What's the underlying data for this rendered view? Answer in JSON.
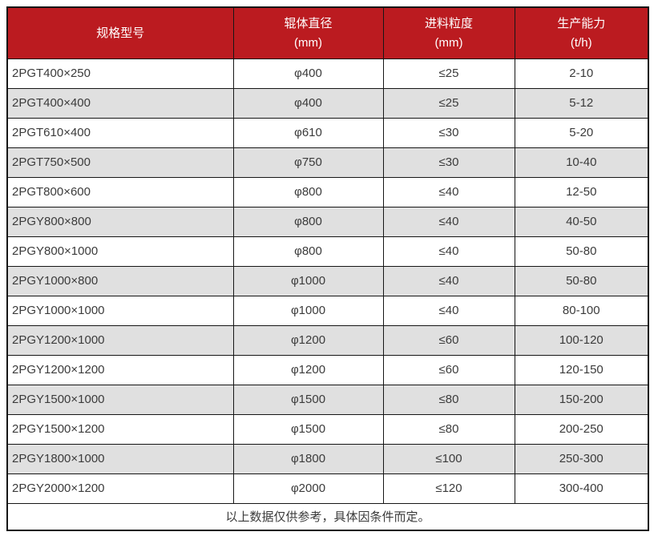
{
  "table": {
    "columns": [
      {
        "label": "规格型号",
        "unit": ""
      },
      {
        "label": "辊体直径",
        "unit": "(mm)"
      },
      {
        "label": "进料粒度",
        "unit": "(mm)"
      },
      {
        "label": "生产能力",
        "unit": "(t/h)"
      }
    ],
    "rows": [
      [
        "2PGT400×250",
        "φ400",
        "≤25",
        "2-10"
      ],
      [
        "2PGT400×400",
        "φ400",
        "≤25",
        "5-12"
      ],
      [
        "2PGT610×400",
        "φ610",
        "≤30",
        "5-20"
      ],
      [
        "2PGT750×500",
        "φ750",
        "≤30",
        "10-40"
      ],
      [
        "2PGT800×600",
        "φ800",
        "≤40",
        "12-50"
      ],
      [
        "2PGY800×800",
        "φ800",
        "≤40",
        "40-50"
      ],
      [
        "2PGY800×1000",
        "φ800",
        "≤40",
        "50-80"
      ],
      [
        "2PGY1000×800",
        "φ1000",
        "≤40",
        "50-80"
      ],
      [
        "2PGY1000×1000",
        "φ1000",
        "≤40",
        "80-100"
      ],
      [
        "2PGY1200×1000",
        "φ1200",
        "≤60",
        "100-120"
      ],
      [
        "2PGY1200×1200",
        "φ1200",
        "≤60",
        "120-150"
      ],
      [
        "2PGY1500×1000",
        "φ1500",
        "≤80",
        "150-200"
      ],
      [
        "2PGY1500×1200",
        "φ1500",
        "≤80",
        "200-250"
      ],
      [
        "2PGY1800×1000",
        "φ1800",
        "≤100",
        "250-300"
      ],
      [
        "2PGY2000×1200",
        "φ2000",
        "≤120",
        "300-400"
      ]
    ],
    "footnote": "以上数据仅供参考，具体因条件而定。"
  },
  "colors": {
    "header_bg": "#BB1B20",
    "header_text": "#FFFFFF",
    "row_alt_bg": "#E0E0E0",
    "border": "#161616",
    "text": "#3B3B3B"
  }
}
